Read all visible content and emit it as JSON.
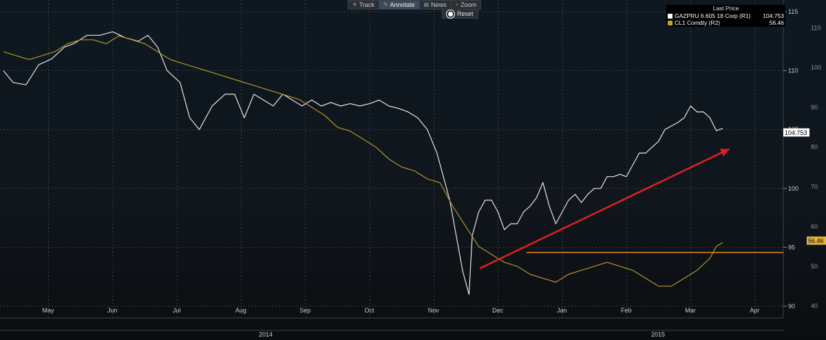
{
  "toolbar": {
    "track_label": "Track",
    "annotate_label": "Annotate",
    "news_label": "News",
    "zoom_label": "Zoom",
    "reset_label": "Reset"
  },
  "legend": {
    "title": "Last Price",
    "series": [
      {
        "name": "GAZPRU 6.605 18 Corp  (R1)",
        "value": "104.753",
        "color": "#ffffff"
      },
      {
        "name": "CL1 Comdty  (R2)",
        "value": "56.46",
        "color": "#c9a227"
      }
    ]
  },
  "chart_data": {
    "type": "line",
    "x_tick_labels": [
      "May",
      "Jun",
      "Jul",
      "Aug",
      "Sep",
      "Oct",
      "Nov",
      "Dec",
      "Jan",
      "Feb",
      "Mar",
      "Apr"
    ],
    "year_labels": [
      "2014",
      "2015"
    ],
    "axes": {
      "r1": {
        "ticks": [
          90,
          95,
          100,
          105,
          110,
          115
        ],
        "range": [
          89,
          116
        ]
      },
      "r2": {
        "ticks": [
          40,
          50,
          60,
          70,
          80,
          90,
          100,
          110
        ],
        "range": [
          37,
          117
        ]
      }
    },
    "last_values": {
      "r1": "104.753",
      "r2": "56.46"
    },
    "series": [
      {
        "name": "GAZPRU 6.605 18 Corp",
        "axis": "r1",
        "color": "#e8e8e8",
        "x": [
          0,
          0.15,
          0.35,
          0.55,
          0.75,
          0.95,
          1.1,
          1.3,
          1.5,
          1.7,
          1.9,
          2.1,
          2.25,
          2.4,
          2.55,
          2.75,
          2.9,
          3.05,
          3.25,
          3.45,
          3.6,
          3.75,
          3.9,
          4.05,
          4.2,
          4.35,
          4.5,
          4.65,
          4.8,
          4.95,
          5.1,
          5.25,
          5.4,
          5.55,
          5.7,
          5.85,
          6.0,
          6.15,
          6.3,
          6.45,
          6.6,
          6.75,
          6.85,
          6.95,
          7.05,
          7.15,
          7.25,
          7.3,
          7.4,
          7.5,
          7.6,
          7.7,
          7.8,
          7.9,
          8.0,
          8.1,
          8.2,
          8.3,
          8.4,
          8.5,
          8.6,
          8.7,
          8.8,
          8.9,
          9.0,
          9.1,
          9.2,
          9.3,
          9.4,
          9.5,
          9.6,
          9.7,
          9.8,
          9.9,
          10.0,
          10.1,
          10.2,
          10.3,
          10.4,
          10.5,
          10.6,
          10.7,
          10.8,
          10.9,
          11.0,
          11.1,
          11.2
        ],
        "y": [
          110,
          109,
          108.8,
          110.5,
          111,
          112,
          112.3,
          113,
          113,
          113.3,
          112.8,
          112.5,
          113,
          112,
          110,
          109,
          106,
          105,
          107,
          108,
          108,
          106,
          108,
          107.5,
          107,
          108,
          107.5,
          107,
          107.5,
          107,
          107.3,
          107,
          107.2,
          107,
          107.2,
          107.5,
          107,
          106.8,
          106.5,
          106,
          105,
          103,
          101,
          99,
          96,
          93,
          91,
          96,
          98,
          99,
          99,
          98,
          96.5,
          97,
          97,
          98,
          98.5,
          99.2,
          100.5,
          98.5,
          97,
          98,
          99,
          99.5,
          98.8,
          99.5,
          100,
          100,
          101,
          101,
          101.2,
          101,
          102,
          103,
          103,
          103.5,
          104,
          105,
          105.3,
          105.6,
          106,
          107,
          106.5,
          106.5,
          106,
          104.9,
          105.1
        ]
      },
      {
        "name": "CL1 Comdty",
        "axis": "r2",
        "color": "#b8952a",
        "x": [
          0,
          0.2,
          0.4,
          0.6,
          0.8,
          1.0,
          1.2,
          1.4,
          1.6,
          1.8,
          2.0,
          2.2,
          2.4,
          2.6,
          2.8,
          3.0,
          3.2,
          3.4,
          3.6,
          3.8,
          4.0,
          4.2,
          4.4,
          4.6,
          4.8,
          5.0,
          5.2,
          5.4,
          5.6,
          5.8,
          6.0,
          6.2,
          6.4,
          6.6,
          6.8,
          7.0,
          7.2,
          7.4,
          7.6,
          7.8,
          8.0,
          8.2,
          8.4,
          8.6,
          8.8,
          9.0,
          9.2,
          9.4,
          9.6,
          9.8,
          10.0,
          10.2,
          10.4,
          10.6,
          10.8,
          11.0,
          11.1,
          11.2
        ],
        "y": [
          104,
          103,
          102,
          103,
          104,
          106,
          107,
          107,
          106,
          108,
          107,
          106,
          104,
          102,
          101,
          100,
          99,
          98,
          97,
          96,
          95,
          94,
          93,
          92,
          90,
          88,
          85,
          84,
          82,
          80,
          77,
          75,
          74,
          72,
          71,
          65,
          60,
          55,
          53,
          51,
          50,
          48,
          47,
          46,
          48,
          49,
          50,
          51,
          50,
          49,
          47,
          45,
          45,
          47,
          49,
          52,
          55,
          56
        ]
      }
    ],
    "support_level_r2": 53.5,
    "trend_arrow": {
      "from": [
        7.42,
        49.5
      ],
      "to": [
        11.3,
        79.5
      ],
      "color": "#e02020"
    }
  }
}
